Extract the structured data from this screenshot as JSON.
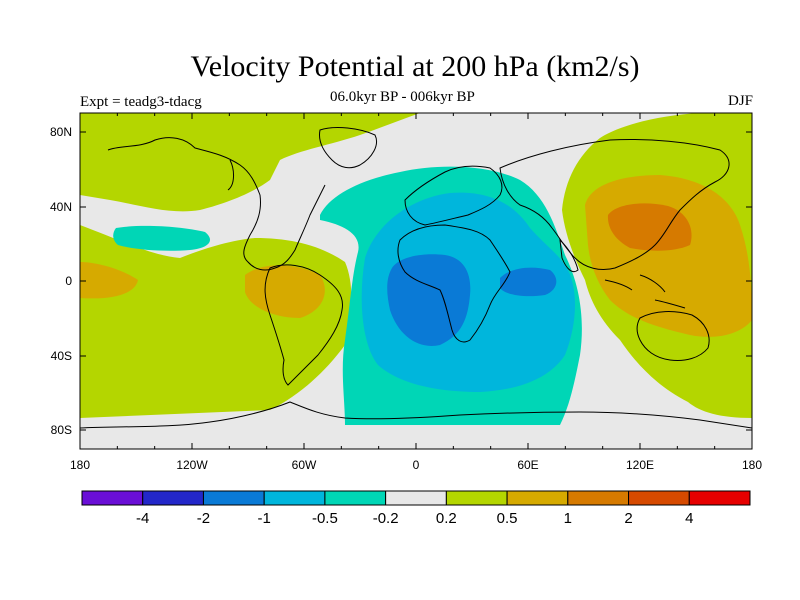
{
  "title": "Velocity Potential at 200 hPa (km2/s)",
  "experiment": "Expt = teadg3-tdacg",
  "period": "06.0kyr BP - 006kyr BP",
  "season": "DJF",
  "lat_labels": [
    "80N",
    "40N",
    "0",
    "40S",
    "80S"
  ],
  "lon_labels": [
    "180",
    "120W",
    "60W",
    "0",
    "60E",
    "120E",
    "180"
  ],
  "colorbar": {
    "colors": [
      "#6a0fd6",
      "#2327c9",
      "#0a7ad6",
      "#00b6dc",
      "#00d6b6",
      "#e8e8e8",
      "#b4d600",
      "#d6aa00",
      "#d67a00",
      "#d64a00",
      "#e60000"
    ],
    "labels": [
      "-4",
      "-2",
      "-1",
      "-0.5",
      "-0.2",
      "0.2",
      "0.5",
      "1",
      "2",
      "4"
    ]
  }
}
